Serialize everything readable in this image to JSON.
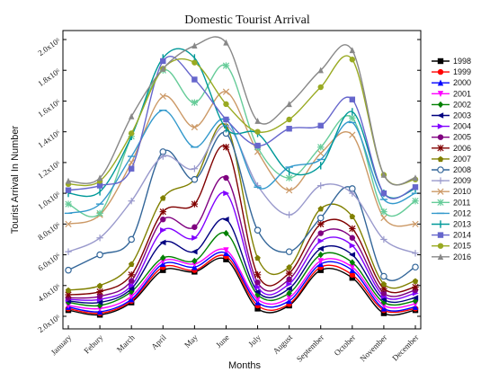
{
  "chart_data": {
    "type": "line",
    "title": "Domestic Tourist Arrival",
    "xlabel": "Months",
    "ylabel": "Tourist Arrival In Number",
    "categories": [
      "January",
      "Febury",
      "March",
      "April",
      "May",
      "June",
      "July",
      "August",
      "September",
      "October",
      "November",
      "December"
    ],
    "yticks": [
      "2.0x10⁶",
      "4.0x10⁶",
      "6.0x10⁶",
      "8.0x10⁶",
      "1.0x10⁶",
      "1.2x10⁶",
      "1.4x10⁶",
      "1.6x10⁶",
      "1.8x10⁶",
      "2.0x10⁶"
    ],
    "ylim": [
      0,
      2000000
    ],
    "grid": false,
    "legend_position": "right",
    "series": [
      {
        "name": "1998",
        "color": "#000000",
        "marker": "square",
        "values": [
          240000,
          210000,
          290000,
          500000,
          490000,
          570000,
          250000,
          270000,
          500000,
          450000,
          220000,
          240000
        ]
      },
      {
        "name": "1999",
        "color": "#ff0000",
        "marker": "circle",
        "values": [
          250000,
          220000,
          300000,
          520000,
          500000,
          590000,
          270000,
          280000,
          520000,
          470000,
          240000,
          250000
        ]
      },
      {
        "name": "2000",
        "color": "#0000ff",
        "marker": "triangle-up",
        "values": [
          260000,
          230000,
          310000,
          540000,
          520000,
          610000,
          290000,
          300000,
          540000,
          500000,
          250000,
          260000
        ]
      },
      {
        "name": "2001",
        "color": "#ff00ff",
        "marker": "triangle-down",
        "values": [
          270000,
          250000,
          330000,
          560000,
          540000,
          630000,
          310000,
          320000,
          560000,
          520000,
          270000,
          280000
        ]
      },
      {
        "name": "2002",
        "color": "#008000",
        "marker": "diamond",
        "values": [
          290000,
          270000,
          360000,
          580000,
          560000,
          740000,
          340000,
          350000,
          600000,
          550000,
          290000,
          300000
        ]
      },
      {
        "name": "2003",
        "color": "#000080",
        "marker": "triangle-left",
        "values": [
          300000,
          290000,
          380000,
          680000,
          620000,
          830000,
          360000,
          380000,
          640000,
          600000,
          310000,
          320000
        ]
      },
      {
        "name": "2004",
        "color": "#8000ff",
        "marker": "triangle-right",
        "values": [
          310000,
          310000,
          400000,
          760000,
          710000,
          1000000,
          390000,
          410000,
          690000,
          660000,
          330000,
          350000
        ]
      },
      {
        "name": "2005",
        "color": "#800080",
        "marker": "hexagon",
        "values": [
          320000,
          330000,
          430000,
          830000,
          780000,
          1100000,
          420000,
          440000,
          740000,
          710000,
          350000,
          370000
        ]
      },
      {
        "name": "2006",
        "color": "#800000",
        "marker": "star",
        "values": [
          340000,
          360000,
          470000,
          880000,
          930000,
          1300000,
          470000,
          480000,
          800000,
          770000,
          380000,
          390000
        ]
      },
      {
        "name": "2007",
        "color": "#808000",
        "marker": "pentagon",
        "values": [
          370000,
          400000,
          540000,
          970000,
          1090000,
          1440000,
          580000,
          520000,
          900000,
          850000,
          410000,
          430000
        ]
      },
      {
        "name": "2008",
        "color": "#336699",
        "marker": "circle-open",
        "values": [
          500000,
          600000,
          700000,
          1270000,
          1090000,
          1390000,
          760000,
          620000,
          840000,
          1030000,
          460000,
          520000
        ]
      },
      {
        "name": "2009",
        "color": "#9999cc",
        "marker": "plus",
        "values": [
          620000,
          710000,
          950000,
          1240000,
          1160000,
          1440000,
          1050000,
          860000,
          1050000,
          1000000,
          700000,
          610000
        ]
      },
      {
        "name": "2010",
        "color": "#cc9966",
        "marker": "cross",
        "values": [
          800000,
          860000,
          1200000,
          1630000,
          1430000,
          1660000,
          1270000,
          1020000,
          1260000,
          1380000,
          840000,
          800000
        ]
      },
      {
        "name": "2011",
        "color": "#66cc99",
        "marker": "asterisk",
        "values": [
          930000,
          870000,
          1370000,
          1800000,
          1590000,
          1830000,
          1300000,
          1100000,
          1300000,
          1490000,
          880000,
          950000
        ]
      },
      {
        "name": "2012",
        "color": "#3399cc",
        "marker": "dash",
        "values": [
          870000,
          930000,
          1240000,
          1540000,
          1300000,
          1480000,
          1040000,
          1170000,
          1220000,
          1460000,
          960000,
          1000000
        ]
      },
      {
        "name": "2013",
        "color": "#009999",
        "marker": "pipe",
        "values": [
          1000000,
          1010000,
          1370000,
          1880000,
          1880000,
          1420000,
          1390000,
          1140000,
          1180000,
          1530000,
          1000000,
          1030000
        ]
      },
      {
        "name": "2014",
        "color": "#6666cc",
        "marker": "square",
        "values": [
          1020000,
          1050000,
          1160000,
          1860000,
          1740000,
          1480000,
          1310000,
          1420000,
          1440000,
          1610000,
          1000000,
          1040000
        ]
      },
      {
        "name": "2015",
        "color": "#99aa22",
        "marker": "circle",
        "values": [
          1060000,
          1080000,
          1390000,
          1810000,
          1850000,
          1580000,
          1400000,
          1480000,
          1690000,
          1870000,
          1120000,
          1090000
        ]
      },
      {
        "name": "2016",
        "color": "#888888",
        "marker": "triangle-up",
        "values": [
          1080000,
          1100000,
          1500000,
          1810000,
          1960000,
          1980000,
          1470000,
          1580000,
          1800000,
          1930000,
          1120000,
          1100000
        ]
      }
    ]
  }
}
